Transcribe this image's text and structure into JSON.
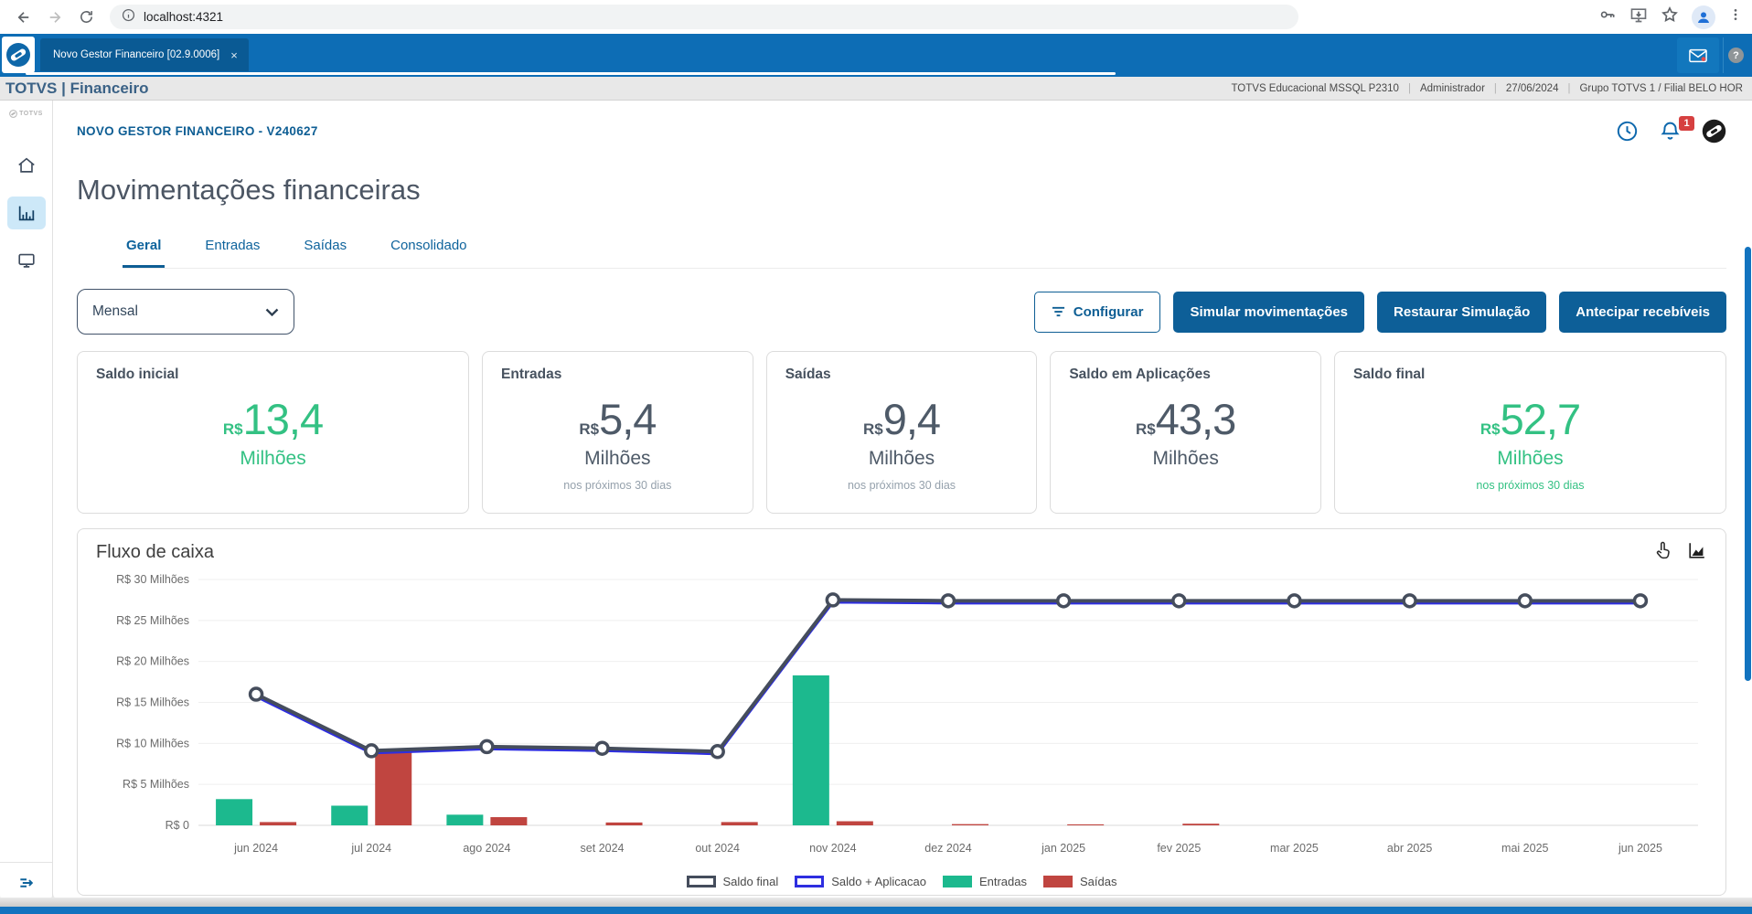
{
  "browser": {
    "url": "localhost:4321",
    "tab_title": "Novo Gestor Financeiro [02.9.0006]",
    "tab_close": "×"
  },
  "brand_bar": {
    "brand": "TOTVS | Financeiro",
    "env": [
      "TOTVS Educacional MSSQL P2310",
      "Administrador",
      "27/06/2024",
      "Grupo TOTVS 1 / Filial BELO HOR"
    ]
  },
  "page": {
    "app_subtitle": "NOVO GESTOR FINANCEIRO - V240627",
    "title": "Movimentações financeiras",
    "notification_count": "1",
    "tabs": [
      {
        "label": "Geral",
        "active": true
      },
      {
        "label": "Entradas",
        "active": false
      },
      {
        "label": "Saídas",
        "active": false
      },
      {
        "label": "Consolidado",
        "active": false
      }
    ],
    "period_select": {
      "value": "Mensal"
    },
    "actions": {
      "configure": "Configurar",
      "simulate": "Simular movimentações",
      "restore": "Restaurar Simulação",
      "anticipate": "Antecipar recebíveis"
    }
  },
  "kpi_cards": [
    {
      "title": "Saldo inicial",
      "currency": "R$",
      "value": "13,4",
      "unit": "Milhões",
      "subtitle": "",
      "color": "green"
    },
    {
      "title": "Entradas",
      "currency": "R$",
      "value": "5,4",
      "unit": "Milhões",
      "subtitle": "nos próximos 30 dias",
      "color": "gray"
    },
    {
      "title": "Saídas",
      "currency": "R$",
      "value": "9,4",
      "unit": "Milhões",
      "subtitle": "nos próximos 30 dias",
      "color": "gray"
    },
    {
      "title": "Saldo em Aplicações",
      "currency": "R$",
      "value": "43,3",
      "unit": "Milhões",
      "subtitle": "",
      "color": "gray"
    },
    {
      "title": "Saldo final",
      "currency": "R$",
      "value": "52,7",
      "unit": "Milhões",
      "subtitle": "nos próximos 30 dias",
      "color": "green"
    }
  ],
  "chart_data": {
    "type": "bar",
    "subtype": "combo-bar-line",
    "title": "Fluxo de caixa",
    "categories": [
      "jun 2024",
      "jul 2024",
      "ago 2024",
      "set 2024",
      "out 2024",
      "nov 2024",
      "dez 2024",
      "jan 2025",
      "fev 2025",
      "mar 2025",
      "abr 2025",
      "mai 2025",
      "jun 2025"
    ],
    "ylim": [
      0,
      30
    ],
    "y_unit": "Milhões de R$",
    "y_ticks": [
      {
        "value": 0,
        "label": "R$ 0"
      },
      {
        "value": 5,
        "label": "R$ 5 Milhões"
      },
      {
        "value": 10,
        "label": "R$ 10 Milhões"
      },
      {
        "value": 15,
        "label": "R$ 15 Milhões"
      },
      {
        "value": 20,
        "label": "R$ 20 Milhões"
      },
      {
        "value": 25,
        "label": "R$ 25 Milhões"
      },
      {
        "value": 30,
        "label": "R$ 30 Milhões"
      }
    ],
    "grid": true,
    "legend_position": "bottom",
    "series": [
      {
        "name": "Saldo final",
        "type": "line",
        "color": "#454d5c",
        "values": [
          16.0,
          9.1,
          9.6,
          9.4,
          9.0,
          27.5,
          27.4,
          27.4,
          27.4,
          27.4,
          27.4,
          27.4,
          27.4
        ]
      },
      {
        "name": "Saldo + Aplicacao",
        "type": "line",
        "color": "#2e2ee0",
        "values": [
          16.0,
          9.1,
          9.6,
          9.4,
          9.0,
          27.5,
          27.4,
          27.4,
          27.4,
          27.4,
          27.4,
          27.4,
          27.4
        ]
      },
      {
        "name": "Entradas",
        "type": "bar",
        "color": "#1cb98e",
        "values": [
          3.2,
          2.4,
          1.3,
          0,
          0,
          18.3,
          0,
          0,
          0,
          0,
          0,
          0,
          0
        ]
      },
      {
        "name": "Saídas",
        "type": "bar",
        "color": "#c04540",
        "values": [
          0.4,
          9.1,
          1.0,
          0.35,
          0.4,
          0.5,
          0.15,
          0.12,
          0.2,
          0,
          0,
          0,
          0
        ]
      }
    ]
  },
  "colors": {
    "accent_blue": "#0e5e94",
    "topbar_blue": "#0d6db5",
    "green": "#33c183",
    "bar_green": "#1cb98e",
    "bar_red": "#c04540",
    "line_dark": "#454d5c",
    "line_blue": "#2e2ee0",
    "badge_red": "#d64040"
  },
  "icons": {
    "back": "arrow-left",
    "forward": "arrow-right",
    "reload": "refresh",
    "site_info": "info-circle",
    "key": "password-key",
    "install": "install-screen",
    "bookmark": "star",
    "profile": "person",
    "menu": "kebab",
    "mail": "envelope",
    "help": "question",
    "clock": "history-clock",
    "bell": "notifications",
    "totvs": "totvs-swirl",
    "hand": "pointer-hand",
    "area_chart": "area-chart",
    "filter": "filter-lines",
    "home": "house",
    "dashboard": "bar-chart",
    "monitor": "screen",
    "expand": "arrow-expand"
  }
}
